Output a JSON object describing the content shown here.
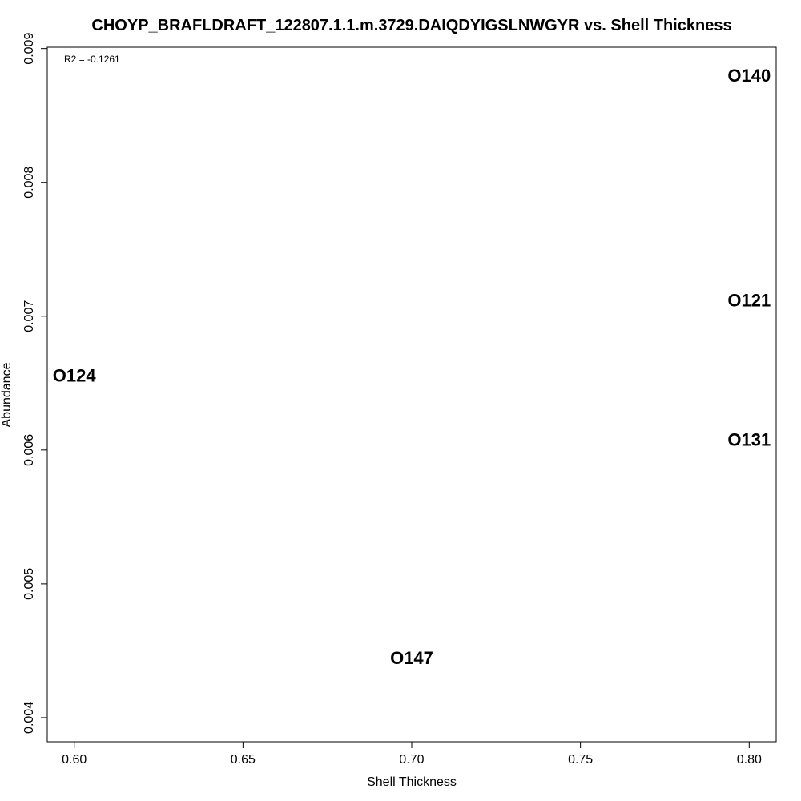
{
  "chart_data": {
    "type": "scatter",
    "title": "CHOYP_BRAFLDRAFT_122807.1.1.m.3729.DAIQDYIGSLNWGYR vs. Shell Thickness",
    "xlabel": "Shell Thickness",
    "ylabel": "Abundance",
    "xlim": [
      0.592,
      0.808
    ],
    "ylim": [
      0.00382,
      0.00901
    ],
    "xticks": [
      0.6,
      0.65,
      0.7,
      0.75,
      0.8
    ],
    "xtick_labels": [
      "0.60",
      "0.65",
      "0.70",
      "0.75",
      "0.80"
    ],
    "yticks": [
      0.004,
      0.005,
      0.006,
      0.007,
      0.008,
      0.009
    ],
    "ytick_labels": [
      "0.004",
      "0.005",
      "0.006",
      "0.007",
      "0.008",
      "0.009"
    ],
    "grid": false,
    "annotation": "R2 = -0.1261",
    "points": [
      {
        "label": "O140",
        "x": 0.8,
        "y": 0.0088
      },
      {
        "label": "O121",
        "x": 0.8,
        "y": 0.00712
      },
      {
        "label": "O124",
        "x": 0.6,
        "y": 0.00656
      },
      {
        "label": "O131",
        "x": 0.8,
        "y": 0.00608
      },
      {
        "label": "O147",
        "x": 0.7,
        "y": 0.00445
      }
    ]
  }
}
